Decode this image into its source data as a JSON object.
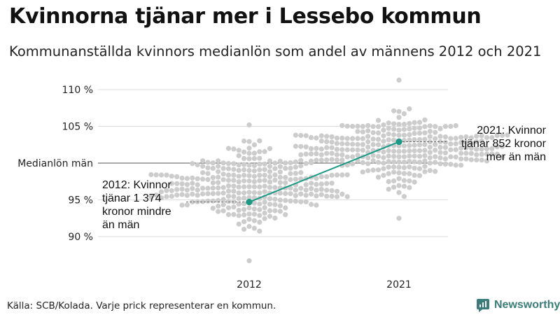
{
  "title": "Kvinnorna tjänar mer i Lessebo kommun",
  "subtitle": "Kommunanställda kvinnors medianlön som andel av männens 2012 och 2021",
  "source": "Källa: SCB/Kolada. Varje prick representerar en kommun.",
  "brand": "Newsworthy",
  "colors": {
    "dots": "#cccccc",
    "highlight": "#1a9985",
    "grid": "#dddddd",
    "reference_line": "#555555"
  },
  "chart_data": {
    "type": "scatter",
    "subtype": "beeswarm",
    "categories": [
      "2012",
      "2021"
    ],
    "y_tick_labels": [
      "110 %",
      "105 %",
      "Medianlön män",
      "95 %",
      "90 %"
    ],
    "y_ticks": [
      110,
      105,
      100,
      95,
      90
    ],
    "ylim": [
      85.5,
      111.5
    ],
    "reference_value": 100,
    "reference_label": "Medianlön män",
    "distributions": [
      {
        "category": "2012",
        "min": 86.7,
        "max": 105.2,
        "center": 96.8,
        "spread": 2.4
      },
      {
        "category": "2021",
        "min": 92.5,
        "max": 111.3,
        "center": 101.6,
        "spread": 2.3
      }
    ],
    "highlight": {
      "values": [
        94.7,
        102.9
      ],
      "annotations": [
        "2012: Kvinnor\ntjänar 1 374\nkronor mindre\nän män",
        "2021: Kvinnor\ntjänar 852 kronor\nmer än män"
      ]
    },
    "grid": true
  }
}
